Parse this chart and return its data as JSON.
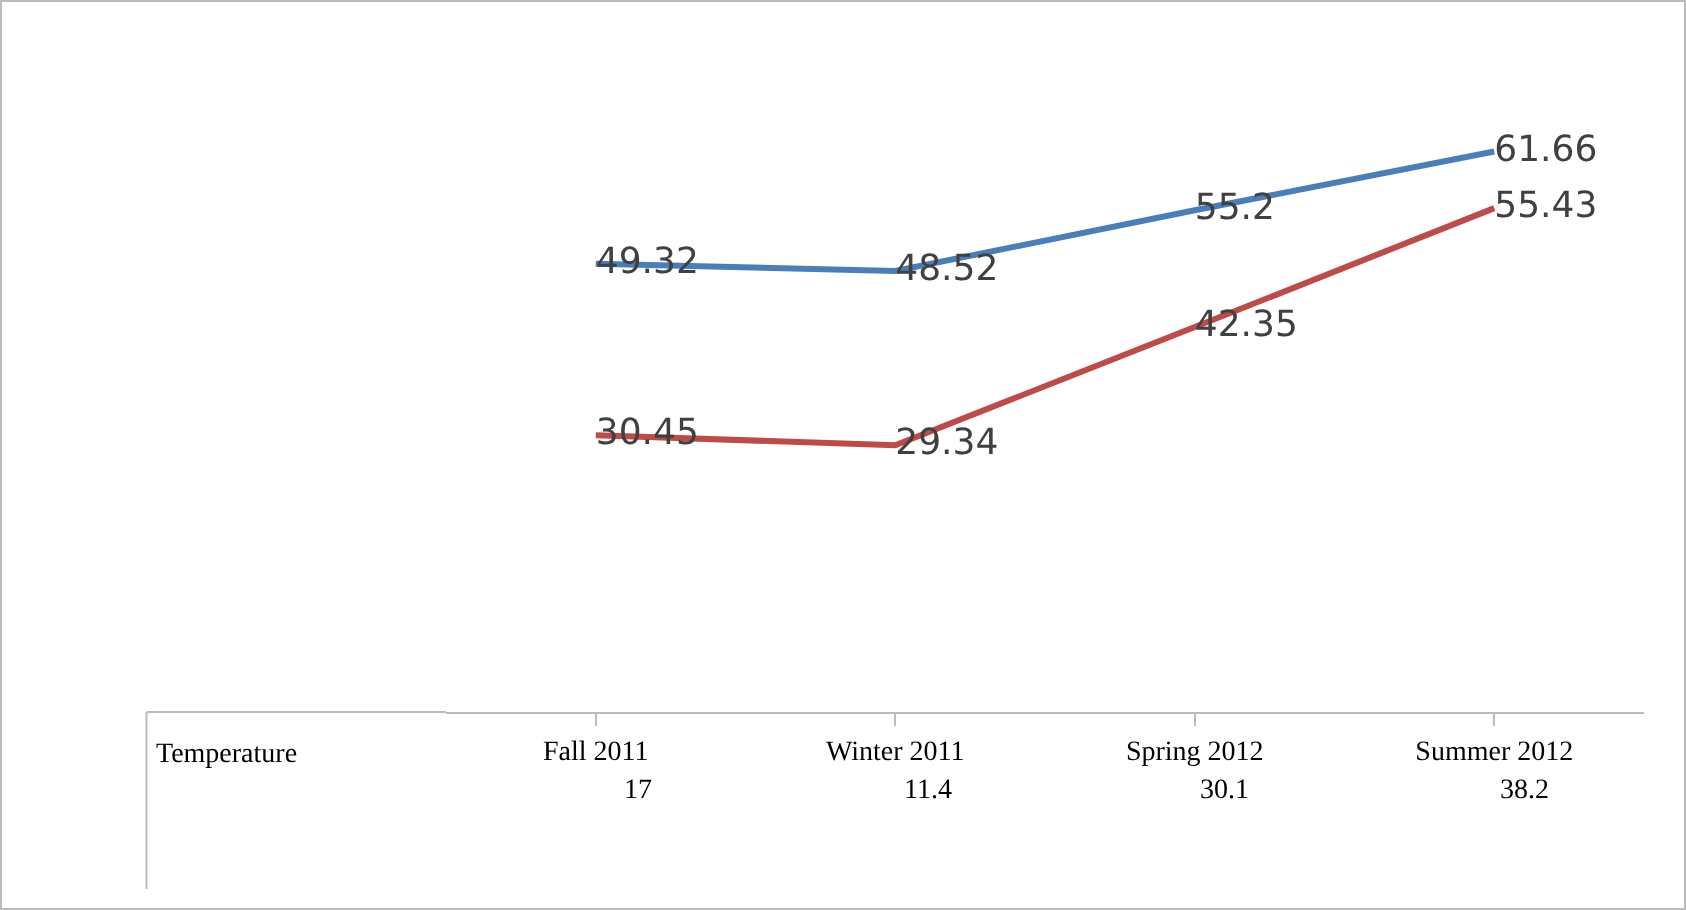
{
  "chart_data": {
    "type": "line",
    "categories": [
      "Fall 2011",
      "Winter 2011",
      "Spring 2012",
      "Summer 2012"
    ],
    "series": [
      {
        "color": "#4a7ebb",
        "values": [
          49.32,
          48.52,
          55.2,
          61.66
        ]
      },
      {
        "color": "#be4b48",
        "values": [
          30.45,
          29.34,
          42.35,
          55.43
        ]
      }
    ],
    "data_labels": true,
    "grid": false,
    "marker": "none",
    "annotations": [
      "Temperature",
      "17",
      "11.4",
      "30.1",
      "38.2"
    ]
  }
}
